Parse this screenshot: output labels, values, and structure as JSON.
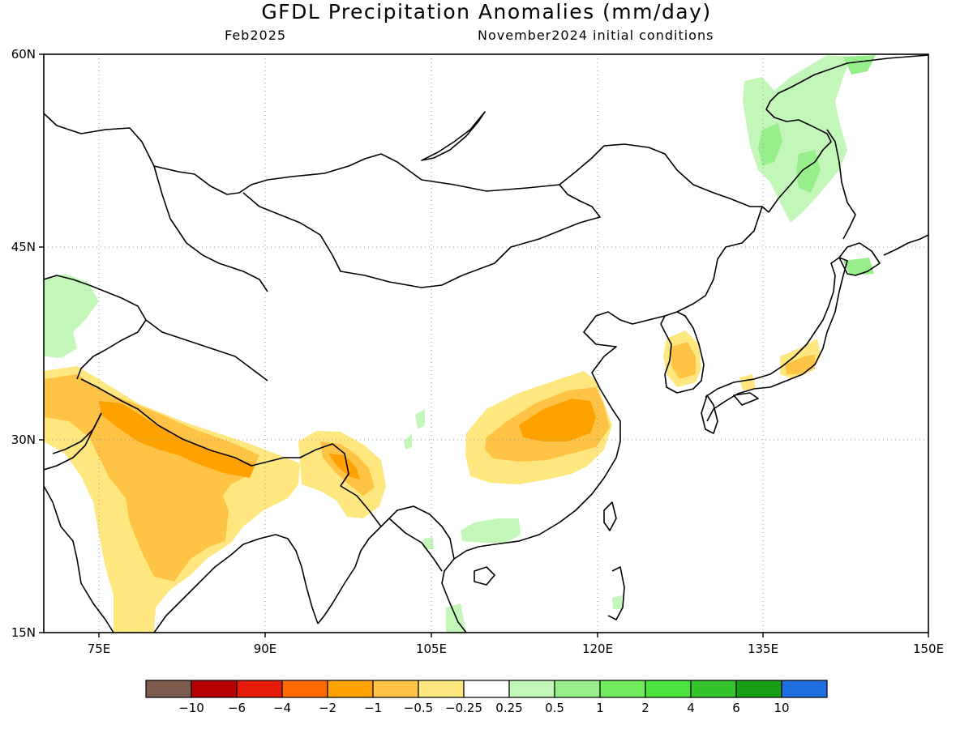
{
  "title": "GFDL Precipitation Anomalies (mm/day)",
  "subtitle_left": "Feb2025",
  "subtitle_right": "November2024 initial conditions",
  "lat_labels": [
    "60N",
    "45N",
    "30N",
    "15N"
  ],
  "lon_labels": [
    "75E",
    "90E",
    "105E",
    "120E",
    "135E",
    "150E"
  ],
  "map_extent": {
    "lon": [
      70,
      150
    ],
    "lat": [
      15,
      60
    ]
  },
  "colorbar": {
    "colors": [
      "#7d5b4d",
      "#b90000",
      "#e41b0b",
      "#ff6a00",
      "#ffa200",
      "#ffc446",
      "#ffe77f",
      "#ffffff",
      "#c3f7b9",
      "#96ef8a",
      "#71ea5d",
      "#4ce43c",
      "#34c42c",
      "#16a016",
      "#1f6fe0"
    ],
    "labels": [
      "-10",
      "-6",
      "-4",
      "-2",
      "-1",
      "-0.5",
      "-0.25",
      "0.25",
      "0.5",
      "1",
      "2",
      "4",
      "6",
      "10"
    ]
  },
  "palette": {
    "dry_light": "#ffe77f",
    "dry_mid": "#ffc446",
    "dry_strong": "#ffa200",
    "wet_light": "#c3f7b9",
    "wet_mid": "#96ef8a"
  }
}
